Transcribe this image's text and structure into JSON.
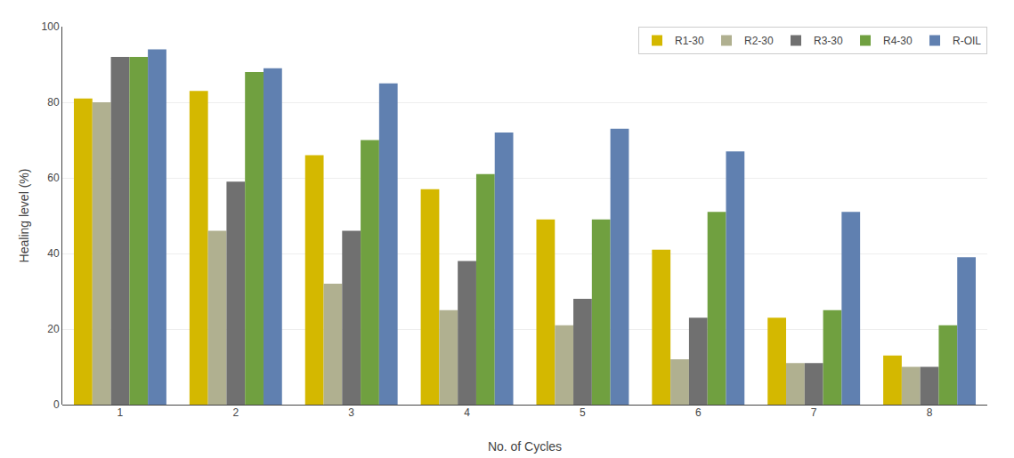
{
  "chart_data": {
    "type": "bar",
    "xlabel": "No. of Cycles",
    "ylabel": "Healing level (%)",
    "categories": [
      1,
      2,
      3,
      4,
      5,
      6,
      7,
      8
    ],
    "series": [
      {
        "name": "R1-30",
        "color": "#d4b800",
        "values": [
          81,
          83,
          66,
          57,
          49,
          41,
          23,
          13
        ]
      },
      {
        "name": "R2-30",
        "color": "#b0b090",
        "values": [
          80,
          46,
          32,
          25,
          21,
          12,
          11,
          10
        ]
      },
      {
        "name": "R3-30",
        "color": "#707070",
        "values": [
          92,
          59,
          46,
          38,
          28,
          23,
          11,
          10
        ]
      },
      {
        "name": "R4-30",
        "color": "#70a040",
        "values": [
          92,
          88,
          70,
          61,
          49,
          51,
          25,
          21
        ]
      },
      {
        "name": "R-OIL",
        "color": "#6080b0",
        "values": [
          94,
          89,
          85,
          72,
          73,
          67,
          51,
          39
        ]
      }
    ],
    "ylim": [
      0,
      100
    ],
    "yticks": [
      0,
      20,
      40,
      60,
      80,
      100
    ],
    "grid": true,
    "legend": "upper right"
  }
}
